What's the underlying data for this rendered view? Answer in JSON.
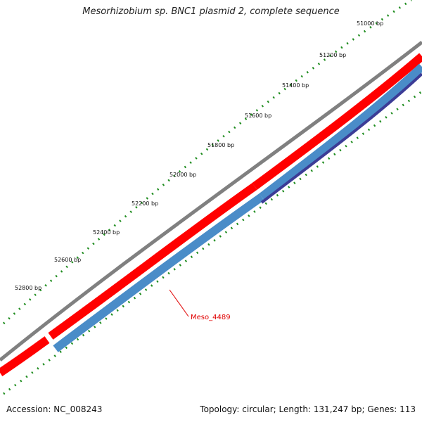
{
  "title": "Mesorhizobium sp. BNC1 plasmid 2, complete sequence",
  "footer": {
    "accession": "Accession: NC_008243",
    "summary": "Topology: circular; Length: 131,247 bp; Genes: 113"
  },
  "scale_labels": [
    "51000 bp",
    "51200 bp",
    "51400 bp",
    "51600 bp",
    "51800 bp",
    "52000 bp",
    "52200 bp",
    "52400 bp",
    "52600 bp",
    "52800 bp"
  ],
  "gene_label": "Meso_4489",
  "colors": {
    "backbone": "#808080",
    "forward_gene": "#ff0000",
    "reverse_gene": "#4a8cc8",
    "reverse_gene_dark": "#3c3c96",
    "ticks": "#1e8c1e",
    "gene_label": "#e00000"
  }
}
